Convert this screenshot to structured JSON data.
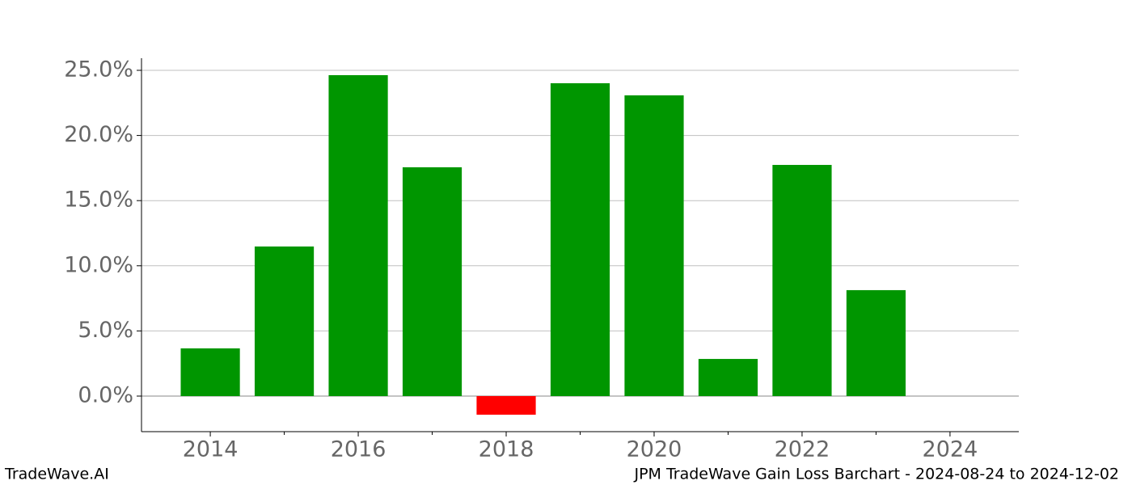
{
  "chart_data": {
    "type": "bar",
    "title": "JPM TradeWave Gain Loss Barchart - 2024-08-24 to 2024-12-02",
    "brand": "TradeWave.AI",
    "x": [
      2014,
      2015,
      2016,
      2017,
      2018,
      2019,
      2020,
      2021,
      2022,
      2023
    ],
    "values": [
      3.66,
      11.48,
      24.63,
      17.56,
      -1.43,
      24.01,
      23.08,
      2.85,
      17.74,
      8.13
    ],
    "colors": [
      "#009600",
      "#009600",
      "#009600",
      "#009600",
      "#ff0000",
      "#009600",
      "#009600",
      "#009600",
      "#009600",
      "#009600"
    ],
    "xlim": [
      2013.07,
      2024.93
    ],
    "xticks": [
      2014,
      2016,
      2018,
      2020,
      2022,
      2024
    ],
    "xminorticks": [
      2015,
      2017,
      2019,
      2021,
      2023
    ],
    "ylim": [
      -2.73,
      25.93
    ],
    "yticks": [
      {
        "value": 0,
        "label": "0.0%"
      },
      {
        "value": 5,
        "label": "5.0%"
      },
      {
        "value": 10,
        "label": "10.0%"
      },
      {
        "value": 15,
        "label": "15.0%"
      },
      {
        "value": 20,
        "label": "20.0%"
      },
      {
        "value": 25,
        "label": "25.0%"
      }
    ],
    "grid": true
  }
}
